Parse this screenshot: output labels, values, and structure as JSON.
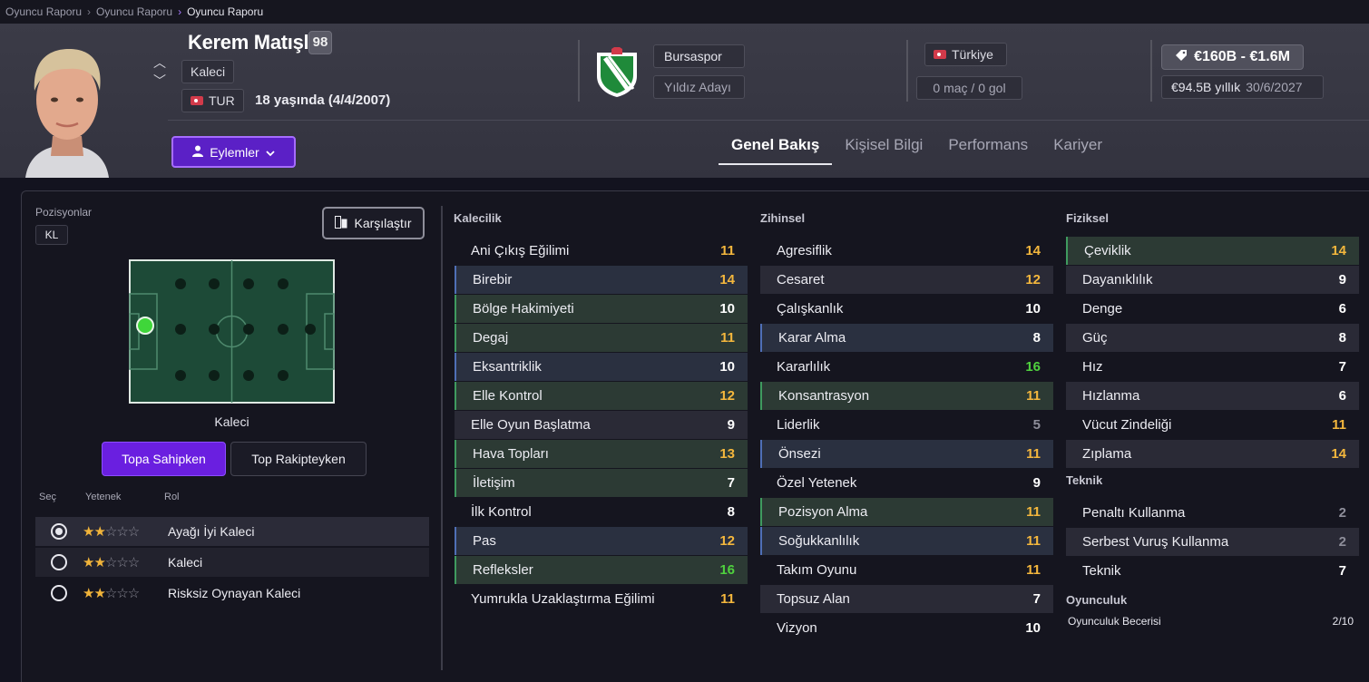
{
  "breadcrumb": [
    "Oyuncu Raporu",
    "Oyuncu Raporu",
    "Oyuncu Raporu"
  ],
  "player": {
    "name": "Kerem Matışlı",
    "rating": "98",
    "position": "Kaleci",
    "nation_code": "TUR",
    "age_text": "18 yaşında (4/4/2007)",
    "actions_label": "Eylemler"
  },
  "club": {
    "name": "Bursaspor",
    "status": "Yıldız Adayı"
  },
  "national": {
    "country": "Türkiye",
    "caps": "0 maç / 0 gol"
  },
  "contract": {
    "value": "€160B - €1.6M",
    "wage": "€94.5B yıllık",
    "expiry": "30/6/2027"
  },
  "tabs": [
    "Genel Bakış",
    "Kişisel Bilgi",
    "Performans",
    "Kariyer"
  ],
  "positions": {
    "label": "Pozisyonlar",
    "code": "KL",
    "compare_label": "Karşılaştır",
    "caption": "Kaleci",
    "phase_on": "Topa Sahipken",
    "phase_off": "Top Rakipteyken"
  },
  "roles": {
    "headers": [
      "Seç",
      "Yetenek",
      "Rol"
    ],
    "items": [
      {
        "name": "Ayağı İyi Kaleci",
        "stars": 2,
        "selected": true
      },
      {
        "name": "Kaleci",
        "stars": 2,
        "selected": false
      },
      {
        "name": "Risksiz Oynayan Kaleci",
        "stars": 2,
        "selected": false
      }
    ]
  },
  "attributes": {
    "kalecilik": {
      "title": "Kalecilik",
      "items": [
        {
          "name": "Ani Çıkış Eğilimi",
          "value": "11",
          "color": "yellow",
          "style": "plain"
        },
        {
          "name": "Birebir",
          "value": "14",
          "color": "yellow",
          "style": "blue"
        },
        {
          "name": "Bölge Hakimiyeti",
          "value": "10",
          "color": "white",
          "style": "green"
        },
        {
          "name": "Degaj",
          "value": "11",
          "color": "yellow",
          "style": "green"
        },
        {
          "name": "Eksantriklik",
          "value": "10",
          "color": "white",
          "style": "blue"
        },
        {
          "name": "Elle Kontrol",
          "value": "12",
          "color": "yellow",
          "style": "green"
        },
        {
          "name": "Elle Oyun Başlatma",
          "value": "9",
          "color": "white",
          "style": "shade"
        },
        {
          "name": "Hava Topları",
          "value": "13",
          "color": "yellow",
          "style": "green"
        },
        {
          "name": "İletişim",
          "value": "7",
          "color": "white",
          "style": "green"
        },
        {
          "name": "İlk Kontrol",
          "value": "8",
          "color": "white",
          "style": "plain"
        },
        {
          "name": "Pas",
          "value": "12",
          "color": "yellow",
          "style": "blue"
        },
        {
          "name": "Refleksler",
          "value": "16",
          "color": "green",
          "style": "green"
        },
        {
          "name": "Yumrukla Uzaklaştırma Eğilimi",
          "value": "11",
          "color": "yellow",
          "style": "plain"
        }
      ]
    },
    "zihinsel": {
      "title": "Zihinsel",
      "items": [
        {
          "name": "Agresiflik",
          "value": "14",
          "color": "yellow",
          "style": "plain"
        },
        {
          "name": "Cesaret",
          "value": "12",
          "color": "yellow",
          "style": "shade"
        },
        {
          "name": "Çalışkanlık",
          "value": "10",
          "color": "white",
          "style": "plain"
        },
        {
          "name": "Karar Alma",
          "value": "8",
          "color": "white",
          "style": "blue"
        },
        {
          "name": "Kararlılık",
          "value": "16",
          "color": "green",
          "style": "plain"
        },
        {
          "name": "Konsantrasyon",
          "value": "11",
          "color": "yellow",
          "style": "green"
        },
        {
          "name": "Liderlik",
          "value": "5",
          "color": "grey",
          "style": "plain"
        },
        {
          "name": "Önsezi",
          "value": "11",
          "color": "yellow",
          "style": "blue"
        },
        {
          "name": "Özel Yetenek",
          "value": "9",
          "color": "white",
          "style": "plain"
        },
        {
          "name": "Pozisyon Alma",
          "value": "11",
          "color": "yellow",
          "style": "green"
        },
        {
          "name": "Soğukkanlılık",
          "value": "11",
          "color": "yellow",
          "style": "blue"
        },
        {
          "name": "Takım Oyunu",
          "value": "11",
          "color": "yellow",
          "style": "plain"
        },
        {
          "name": "Topsuz Alan",
          "value": "7",
          "color": "white",
          "style": "shade"
        },
        {
          "name": "Vizyon",
          "value": "10",
          "color": "white",
          "style": "plain"
        }
      ]
    },
    "fiziksel": {
      "title": "Fiziksel",
      "items": [
        {
          "name": "Çeviklik",
          "value": "14",
          "color": "yellow",
          "style": "green"
        },
        {
          "name": "Dayanıklılık",
          "value": "9",
          "color": "white",
          "style": "shade"
        },
        {
          "name": "Denge",
          "value": "6",
          "color": "white",
          "style": "plain"
        },
        {
          "name": "Güç",
          "value": "8",
          "color": "white",
          "style": "shade"
        },
        {
          "name": "Hız",
          "value": "7",
          "color": "white",
          "style": "plain"
        },
        {
          "name": "Hızlanma",
          "value": "6",
          "color": "white",
          "style": "shade"
        },
        {
          "name": "Vücut Zindeliği",
          "value": "11",
          "color": "yellow",
          "style": "plain"
        },
        {
          "name": "Zıplama",
          "value": "14",
          "color": "yellow",
          "style": "shade"
        }
      ]
    },
    "teknik": {
      "title": "Teknik",
      "items": [
        {
          "name": "Penaltı Kullanma",
          "value": "2",
          "color": "grey",
          "style": "plain"
        },
        {
          "name": "Serbest Vuruş Kullanma",
          "value": "2",
          "color": "grey",
          "style": "shade"
        },
        {
          "name": "Teknik",
          "value": "7",
          "color": "white",
          "style": "plain"
        }
      ]
    },
    "oyunculuk": {
      "title": "Oyunculuk",
      "label": "Oyunculuk Becerisi",
      "value": "2/10"
    }
  },
  "colors": {
    "accent": "#6a1fe0",
    "yellow": "#f4b73d",
    "green": "#4fd13e",
    "grey": "#8e8e9a"
  }
}
